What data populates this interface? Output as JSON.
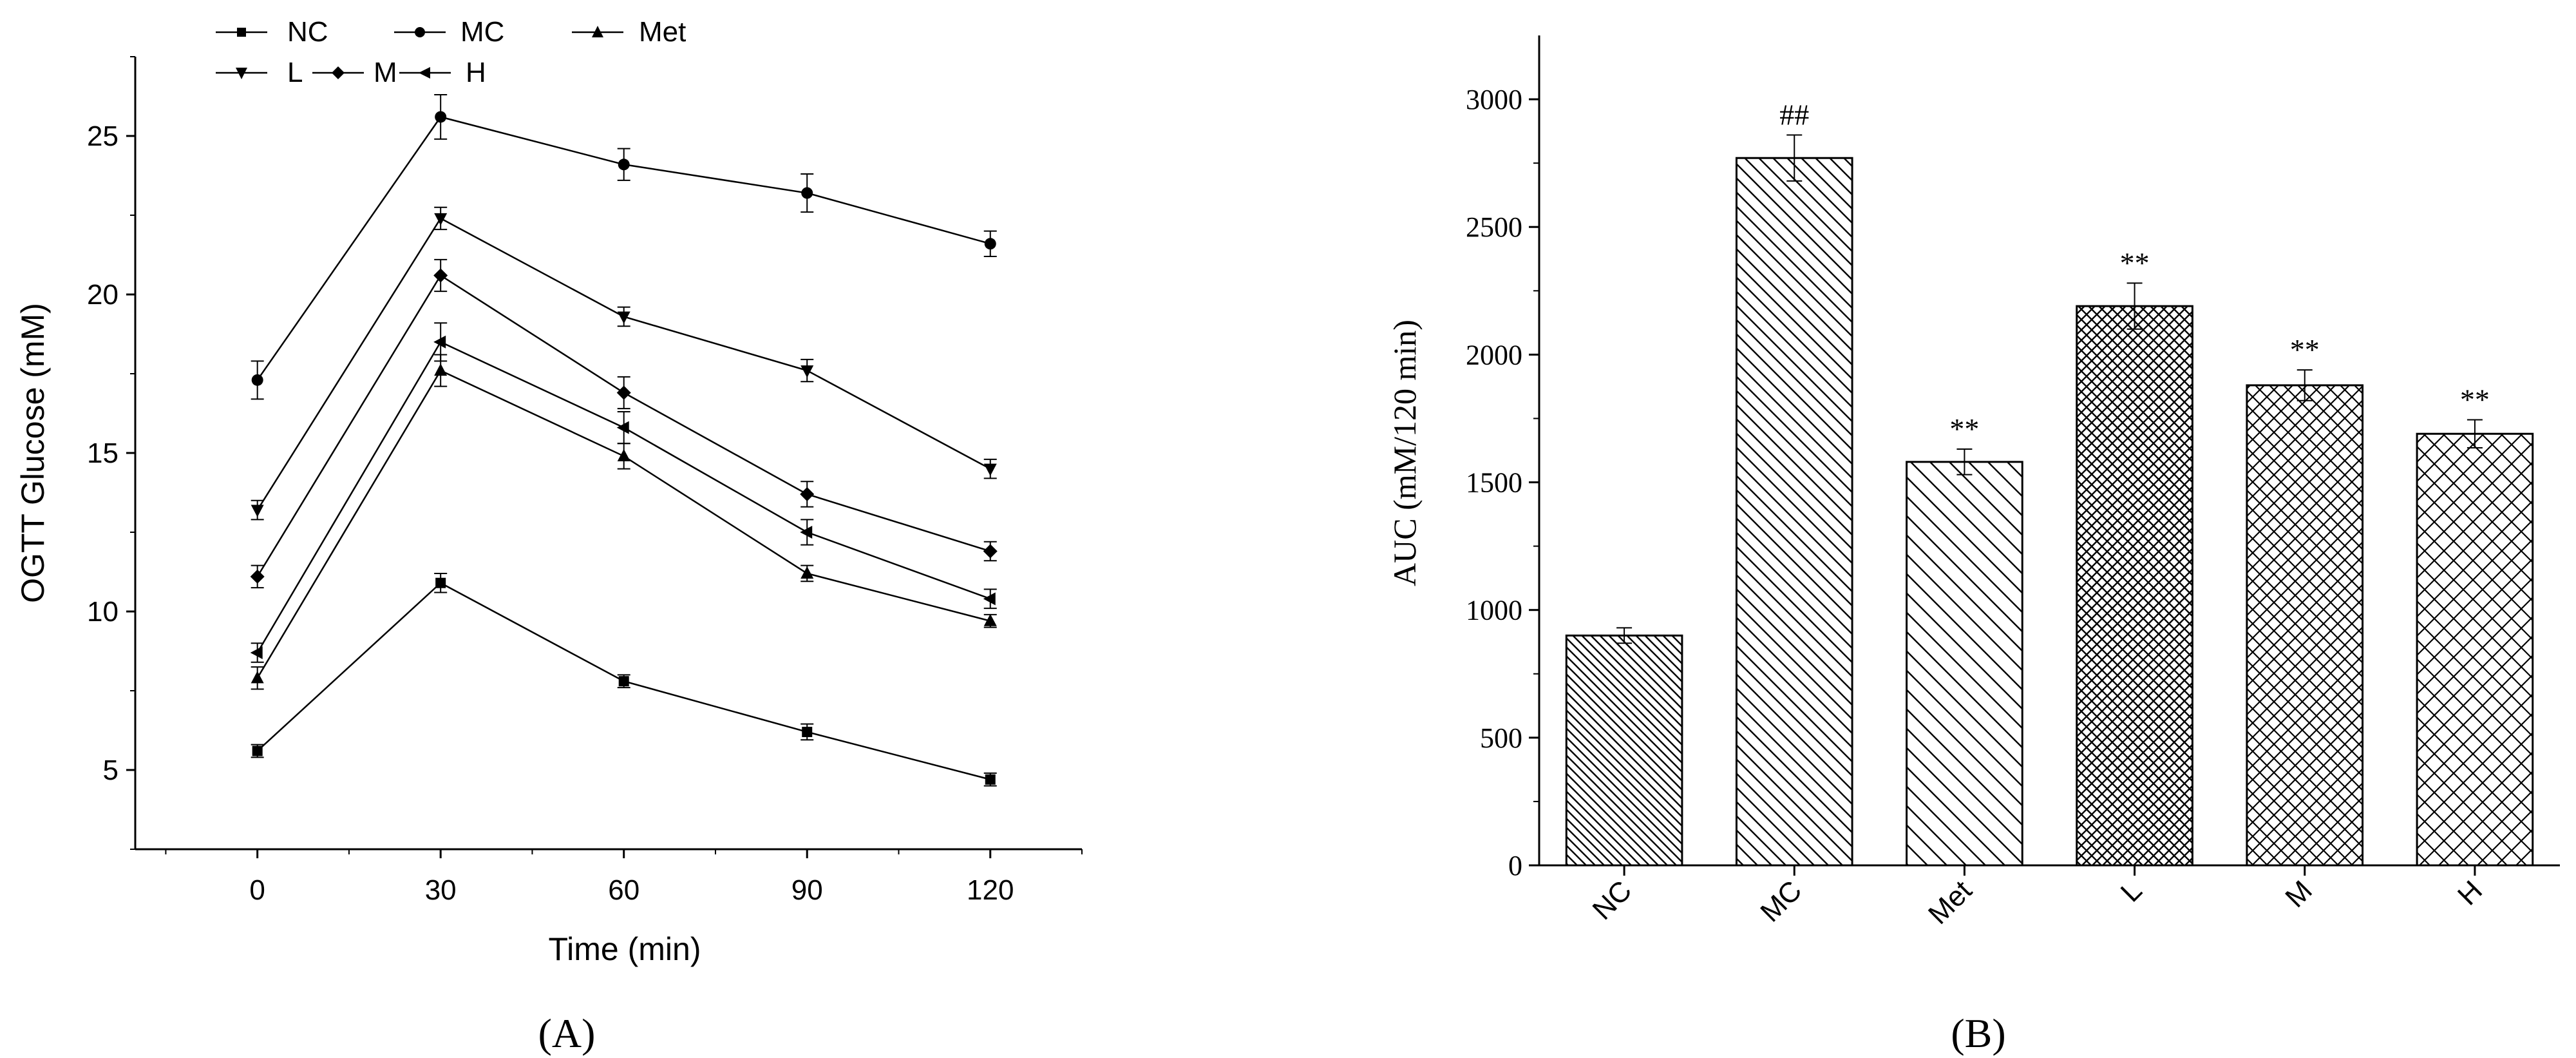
{
  "panels": {
    "a": {
      "panel_label": "(A)",
      "legend": {
        "row1": [
          "NC",
          "MC",
          "Met"
        ],
        "row2": [
          "L",
          "M",
          "H"
        ]
      }
    },
    "b": {
      "panel_label": "(B)"
    }
  },
  "chart_data": [
    {
      "type": "line",
      "xlabel": "Time (min)",
      "ylabel": "OGTT Glucose (mM)",
      "x": [
        0,
        30,
        60,
        90,
        120
      ],
      "xlim": [
        -20,
        135
      ],
      "ylim": [
        2.5,
        27.5
      ],
      "xticks": [
        "0",
        "30",
        "60",
        "90",
        "120"
      ],
      "yticks": [
        "5",
        "10",
        "15",
        "20",
        "25"
      ],
      "grid": false,
      "legend_position": "top-left",
      "series": [
        {
          "name": "NC",
          "marker": "square",
          "values": [
            5.6,
            10.9,
            7.8,
            6.2,
            4.7
          ],
          "errors": [
            0.2,
            0.3,
            0.2,
            0.25,
            0.2
          ]
        },
        {
          "name": "MC",
          "marker": "circle",
          "values": [
            17.3,
            25.6,
            24.1,
            23.2,
            21.6
          ],
          "errors": [
            0.6,
            0.7,
            0.5,
            0.6,
            0.4
          ]
        },
        {
          "name": "Met",
          "marker": "triangle-up",
          "values": [
            7.9,
            17.6,
            14.9,
            11.2,
            9.7
          ],
          "errors": [
            0.35,
            0.5,
            0.4,
            0.25,
            0.2
          ]
        },
        {
          "name": "L",
          "marker": "triangle-down",
          "values": [
            13.2,
            22.4,
            19.3,
            17.6,
            14.5
          ],
          "errors": [
            0.3,
            0.35,
            0.3,
            0.35,
            0.3
          ]
        },
        {
          "name": "M",
          "marker": "diamond",
          "values": [
            11.1,
            20.6,
            16.9,
            13.7,
            11.9
          ],
          "errors": [
            0.35,
            0.5,
            0.5,
            0.4,
            0.3
          ]
        },
        {
          "name": "H",
          "marker": "triangle-left",
          "values": [
            8.7,
            18.5,
            15.8,
            12.5,
            10.4
          ],
          "errors": [
            0.3,
            0.6,
            0.5,
            0.4,
            0.3
          ]
        }
      ]
    },
    {
      "type": "bar",
      "ylabel": "AUC (mM/120 min)",
      "xlabel": "",
      "categories": [
        "NC",
        "MC",
        "Met",
        "L",
        "M",
        "H"
      ],
      "values": [
        900,
        2770,
        1580,
        2190,
        1880,
        1690
      ],
      "errors": [
        30,
        90,
        50,
        90,
        60,
        55
      ],
      "annotations": [
        "",
        "##",
        "**",
        "**",
        "**",
        "**"
      ],
      "patterns": [
        "diag-back-dense",
        "diag-back-medium",
        "diag-back-sparse",
        "crosshatch-dense",
        "crosshatch-medium",
        "crosshatch-sparse"
      ],
      "ylim": [
        0,
        3250
      ],
      "yticks": [
        "0",
        "500",
        "1000",
        "1500",
        "2000",
        "2500",
        "3000"
      ],
      "grid": false
    }
  ]
}
